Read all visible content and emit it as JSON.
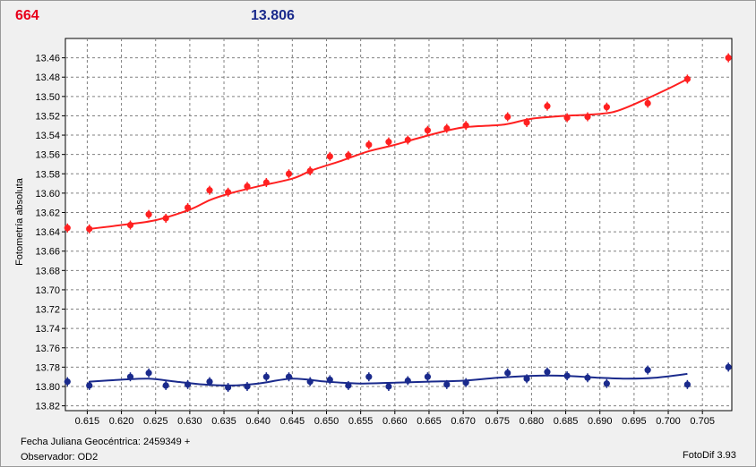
{
  "header": {
    "left_value": "664",
    "left_color": "#e8001c",
    "right_value": "13.806",
    "right_color": "#1a2a8c"
  },
  "footer": {
    "julian_label": "Fecha Juliana Geocéntrica: 2459349 +",
    "observer_label": "Observador: OD2",
    "app_version": "FotoDif 3.93"
  },
  "chart_data": {
    "type": "scatter",
    "ylabel": "Fotometría absoluta",
    "xlabel": "",
    "xlim": [
      0.6118,
      0.7093
    ],
    "ylim": [
      13.825,
      13.44
    ],
    "y_inverted": true,
    "grid": true,
    "x_ticks": [
      "0.615",
      "0.620",
      "0.625",
      "0.630",
      "0.635",
      "0.640",
      "0.645",
      "0.650",
      "0.655",
      "0.660",
      "0.665",
      "0.670",
      "0.675",
      "0.680",
      "0.685",
      "0.690",
      "0.695",
      "0.700",
      "0.705"
    ],
    "y_ticks": [
      "13.46",
      "13.48",
      "13.50",
      "13.52",
      "13.54",
      "13.56",
      "13.58",
      "13.60",
      "13.62",
      "13.64",
      "13.66",
      "13.68",
      "13.70",
      "13.72",
      "13.74",
      "13.76",
      "13.78",
      "13.80",
      "13.82"
    ],
    "series": [
      {
        "color": "#ff2020",
        "points": [
          [
            0.6121,
            13.636
          ],
          [
            0.6153,
            13.637
          ],
          [
            0.6213,
            13.633
          ],
          [
            0.624,
            13.622
          ],
          [
            0.6265,
            13.626
          ],
          [
            0.6297,
            13.615
          ],
          [
            0.6329,
            13.597
          ],
          [
            0.6356,
            13.599
          ],
          [
            0.6384,
            13.593
          ],
          [
            0.6412,
            13.589
          ],
          [
            0.6445,
            13.58
          ],
          [
            0.6476,
            13.577
          ],
          [
            0.6505,
            13.562
          ],
          [
            0.6532,
            13.561
          ],
          [
            0.6562,
            13.55
          ],
          [
            0.6591,
            13.547
          ],
          [
            0.6619,
            13.545
          ],
          [
            0.6648,
            13.535
          ],
          [
            0.6676,
            13.533
          ],
          [
            0.6704,
            13.53
          ],
          [
            0.6765,
            13.521
          ],
          [
            0.6793,
            13.527
          ],
          [
            0.6823,
            13.51
          ],
          [
            0.6852,
            13.522
          ],
          [
            0.6882,
            13.521
          ],
          [
            0.691,
            13.511
          ],
          [
            0.697,
            13.507
          ],
          [
            0.7028,
            13.482
          ],
          [
            0.7088,
            13.46
          ]
        ],
        "fit": [
          [
            0.6153,
            13.637
          ],
          [
            0.62,
            13.633
          ],
          [
            0.625,
            13.628
          ],
          [
            0.63,
            13.617
          ],
          [
            0.633,
            13.607
          ],
          [
            0.636,
            13.6
          ],
          [
            0.64,
            13.593
          ],
          [
            0.645,
            13.585
          ],
          [
            0.648,
            13.576
          ],
          [
            0.652,
            13.567
          ],
          [
            0.656,
            13.557
          ],
          [
            0.66,
            13.55
          ],
          [
            0.665,
            13.54
          ],
          [
            0.67,
            13.532
          ],
          [
            0.676,
            13.529
          ],
          [
            0.68,
            13.523
          ],
          [
            0.685,
            13.52
          ],
          [
            0.688,
            13.519
          ],
          [
            0.692,
            13.516
          ],
          [
            0.696,
            13.505
          ],
          [
            0.7,
            13.492
          ],
          [
            0.7028,
            13.482
          ]
        ]
      },
      {
        "color": "#1a2a8c",
        "points": [
          [
            0.6121,
            13.795
          ],
          [
            0.6153,
            13.799
          ],
          [
            0.6213,
            13.79
          ],
          [
            0.624,
            13.786
          ],
          [
            0.6265,
            13.799
          ],
          [
            0.6297,
            13.798
          ],
          [
            0.6329,
            13.795
          ],
          [
            0.6356,
            13.801
          ],
          [
            0.6384,
            13.8
          ],
          [
            0.6412,
            13.79
          ],
          [
            0.6445,
            13.79
          ],
          [
            0.6476,
            13.795
          ],
          [
            0.6505,
            13.793
          ],
          [
            0.6532,
            13.799
          ],
          [
            0.6562,
            13.79
          ],
          [
            0.6591,
            13.8
          ],
          [
            0.6619,
            13.794
          ],
          [
            0.6648,
            13.79
          ],
          [
            0.6676,
            13.798
          ],
          [
            0.6704,
            13.796
          ],
          [
            0.6765,
            13.786
          ],
          [
            0.6793,
            13.792
          ],
          [
            0.6823,
            13.785
          ],
          [
            0.6852,
            13.789
          ],
          [
            0.6882,
            13.791
          ],
          [
            0.691,
            13.797
          ],
          [
            0.697,
            13.783
          ],
          [
            0.7028,
            13.798
          ],
          [
            0.7088,
            13.78
          ]
        ],
        "fit": [
          [
            0.6153,
            13.795
          ],
          [
            0.62,
            13.793
          ],
          [
            0.624,
            13.792
          ],
          [
            0.628,
            13.795
          ],
          [
            0.632,
            13.798
          ],
          [
            0.636,
            13.799
          ],
          [
            0.64,
            13.797
          ],
          [
            0.645,
            13.792
          ],
          [
            0.65,
            13.795
          ],
          [
            0.655,
            13.797
          ],
          [
            0.66,
            13.796
          ],
          [
            0.665,
            13.795
          ],
          [
            0.67,
            13.794
          ],
          [
            0.675,
            13.791
          ],
          [
            0.68,
            13.789
          ],
          [
            0.685,
            13.789
          ],
          [
            0.69,
            13.791
          ],
          [
            0.694,
            13.792
          ],
          [
            0.698,
            13.791
          ],
          [
            0.7028,
            13.787
          ]
        ]
      }
    ]
  }
}
